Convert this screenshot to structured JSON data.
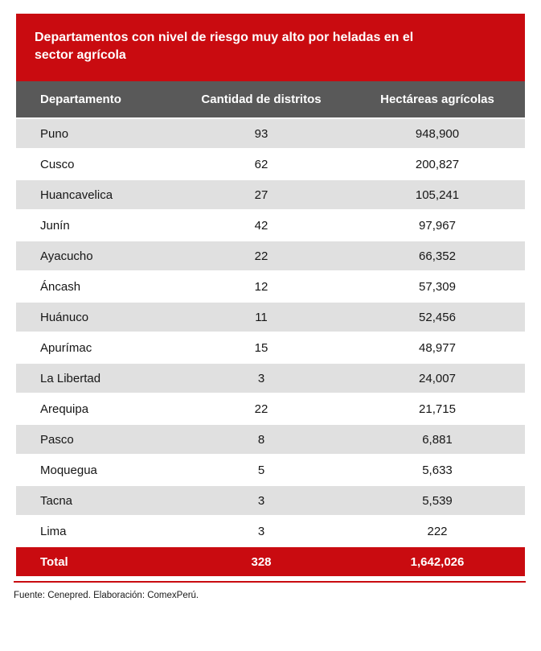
{
  "title": {
    "line1": "Departamentos con nivel de riesgo muy alto por heladas en el",
    "line2": "sector agrícola"
  },
  "chart_data": {
    "type": "table",
    "title": "Departamentos con nivel de riesgo muy alto por heladas en el sector agrícola",
    "columns": [
      "Departamento",
      "Cantidad de distritos",
      "Hectáreas agrícolas"
    ],
    "rows": [
      [
        "Puno",
        93,
        "948,900"
      ],
      [
        "Cusco",
        62,
        "200,827"
      ],
      [
        "Huancavelica",
        27,
        "105,241"
      ],
      [
        "Junín",
        42,
        "97,967"
      ],
      [
        "Ayacucho",
        22,
        "66,352"
      ],
      [
        "Áncash",
        12,
        "57,309"
      ],
      [
        "Huánuco",
        11,
        "52,456"
      ],
      [
        "Apurímac",
        15,
        "48,977"
      ],
      [
        "La Libertad",
        3,
        "24,007"
      ],
      [
        "Arequipa",
        22,
        "21,715"
      ],
      [
        "Pasco",
        8,
        "6,881"
      ],
      [
        "Moquegua",
        5,
        "5,633"
      ],
      [
        "Tacna",
        3,
        "5,539"
      ],
      [
        "Lima",
        3,
        "222"
      ]
    ],
    "total_row": [
      "Total",
      328,
      "1,642,026"
    ],
    "layout_hints": {
      "striped_rows": true,
      "stripe_pattern": "odd rows gray, even rows white",
      "column_alignment": [
        "left",
        "center",
        "center"
      ]
    }
  },
  "footer": {
    "source": "Fuente: Cenepred. Elaboración: ComexPerú."
  },
  "colors": {
    "accent_red": "#C90B10",
    "header_gray": "#595959",
    "stripe_gray": "#E0E0E0",
    "text_dark": "#161616"
  }
}
